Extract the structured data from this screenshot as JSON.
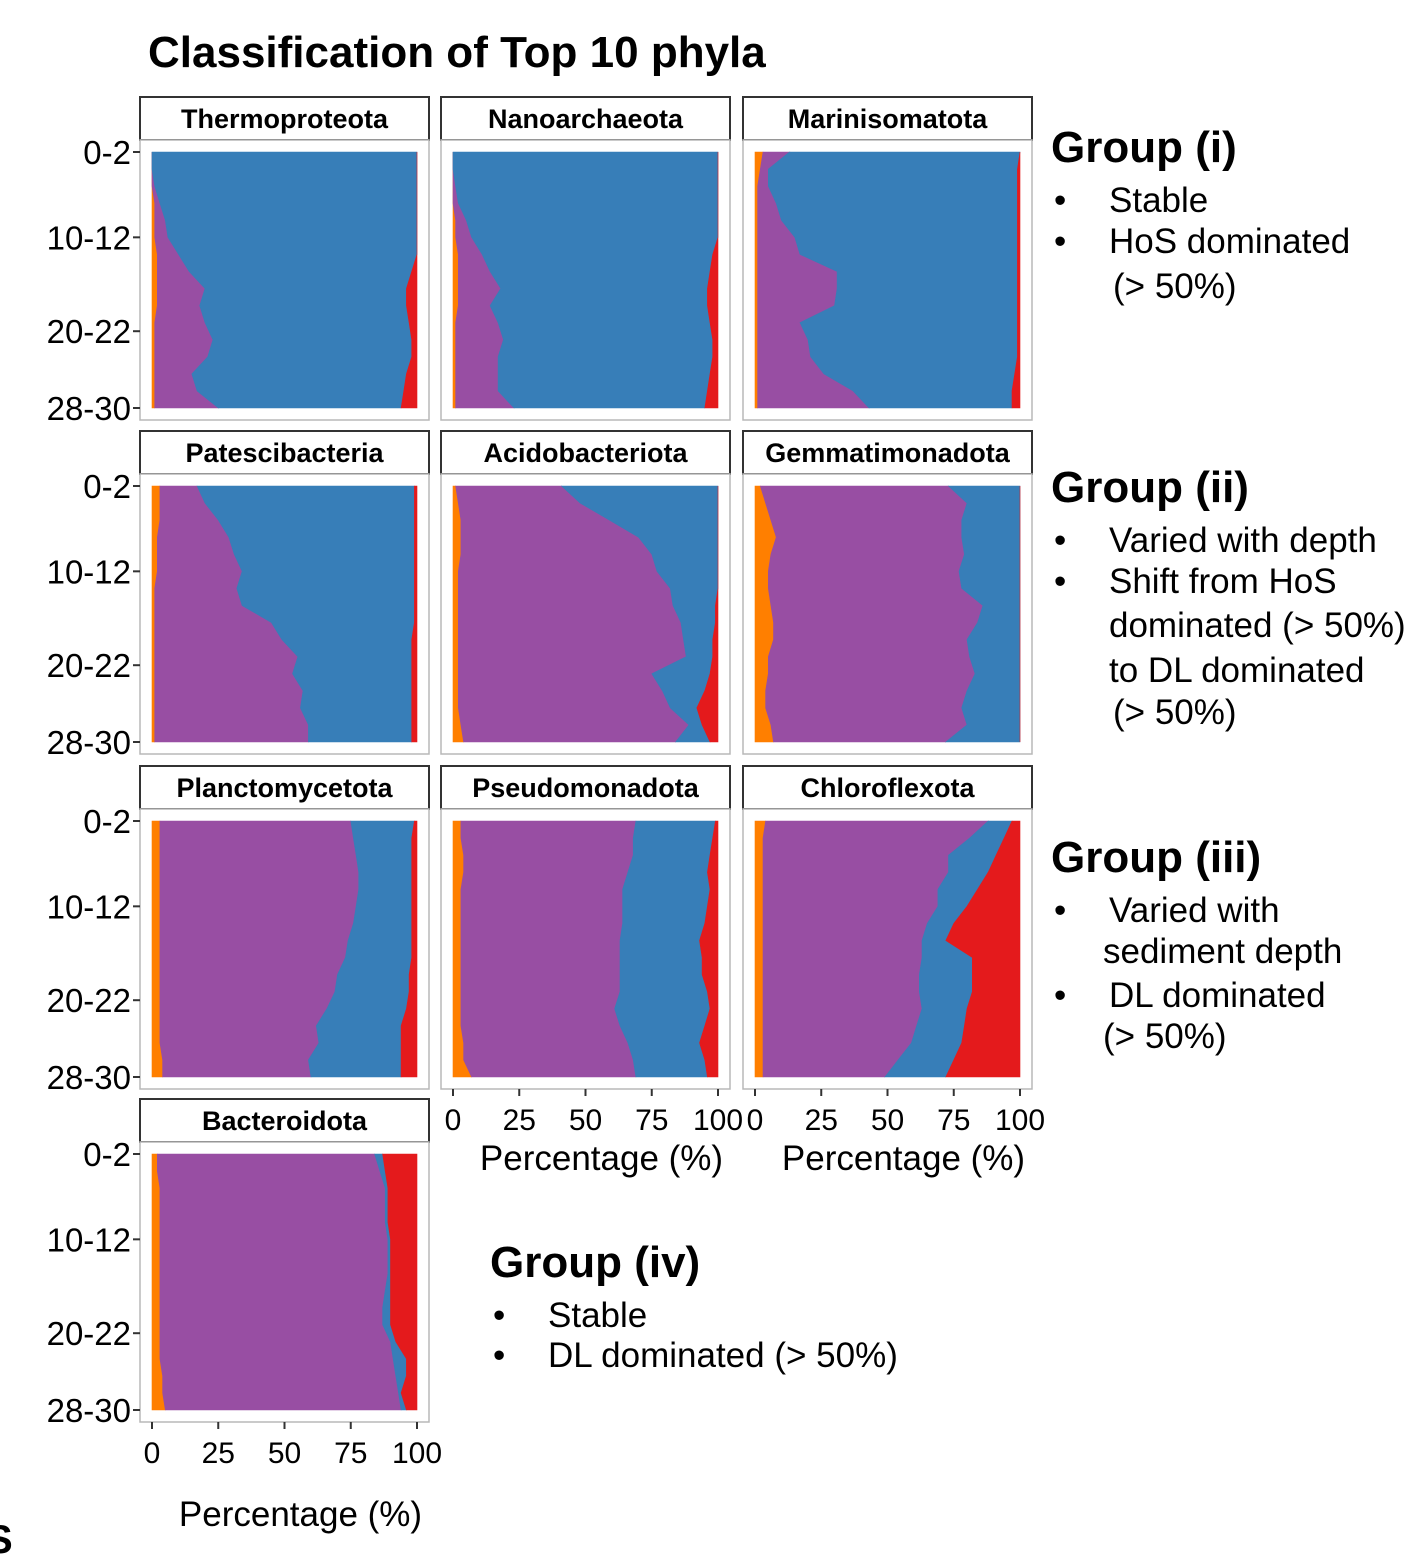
{
  "title": "Classification of Top 10 phyla",
  "colors": {
    "orange": "#FF7F00",
    "purple": "#984EA3",
    "blue": "#377EB8",
    "red": "#E41A1C",
    "strip_bg": "#FFFFFF",
    "frame": "#333333"
  },
  "groups": [
    {
      "title": "Group (i)",
      "lines": [
        {
          "bullet": "•",
          "text": "Stable"
        },
        {
          "bullet": "•",
          "text": "HoS dominated"
        },
        {
          "bullet": "",
          "text": "(> 50%)"
        }
      ]
    },
    {
      "title": "Group (ii)",
      "lines": [
        {
          "bullet": "•",
          "text": "Varied with depth"
        },
        {
          "bullet": "•",
          "text": "Shift from HoS"
        },
        {
          "bullet": "",
          "text": "dominated (> 50%)"
        },
        {
          "bullet": "",
          "text": "to DL dominated"
        },
        {
          "bullet": "",
          "text": "(> 50%)"
        }
      ]
    },
    {
      "title": "Group (iii)",
      "lines": [
        {
          "bullet": "•",
          "text": "Varied with"
        },
        {
          "bullet": "",
          "text": "sediment depth"
        },
        {
          "bullet": "•",
          "text": "DL dominated"
        },
        {
          "bullet": "",
          "text": "(> 50%)"
        }
      ]
    },
    {
      "title": "Group (iv)",
      "lines": [
        {
          "bullet": "•",
          "text": "Stable"
        },
        {
          "bullet": "•",
          "text": "DL dominated (> 50%)"
        }
      ]
    }
  ],
  "stray_mark": "S",
  "chart_data": {
    "type": "area",
    "title": "Classification of Top 10 phyla",
    "xlabel": "Percentage (%)",
    "ylabel": "",
    "xlim": [
      0,
      100
    ],
    "x_ticks": [
      0,
      25,
      50,
      75,
      100
    ],
    "y_tick_labels": [
      "0-2",
      "10-12",
      "20-22",
      "28-30"
    ],
    "y_tick_depths": [
      0,
      10,
      21,
      30
    ],
    "depths": [
      0,
      2,
      4,
      6,
      8,
      10,
      12,
      14,
      16,
      18,
      20,
      22,
      24,
      26,
      28,
      30
    ],
    "stack_order": [
      "orange",
      "purple",
      "blue",
      "red"
    ],
    "legend": "none",
    "panels": [
      {
        "name": "Thermoproteota",
        "orange": [
          0,
          0,
          0,
          1,
          1,
          1,
          2,
          2,
          2,
          2,
          1,
          1,
          1,
          1,
          1,
          1
        ],
        "purple": [
          0,
          0,
          1,
          2,
          4,
          5,
          8,
          12,
          18,
          16,
          19,
          22,
          20,
          14,
          16,
          24
        ],
        "red": [
          0,
          0,
          0,
          0,
          0,
          0,
          0,
          2,
          4,
          4,
          3,
          2,
          2,
          4,
          5,
          6
        ]
      },
      {
        "name": "Nanoarchaeota",
        "orange": [
          0,
          0,
          0,
          0,
          1,
          1,
          2,
          2,
          2,
          2,
          1,
          1,
          1,
          1,
          1,
          1
        ],
        "purple": [
          0,
          0,
          1,
          2,
          4,
          6,
          9,
          12,
          16,
          12,
          16,
          18,
          16,
          16,
          16,
          22
        ],
        "red": [
          0,
          0,
          0,
          0,
          0,
          0,
          2,
          3,
          4,
          4,
          3,
          2,
          2,
          3,
          4,
          5
        ]
      },
      {
        "name": "Marinisomatota",
        "orange": [
          3,
          2,
          1,
          1,
          1,
          1,
          1,
          1,
          1,
          1,
          1,
          1,
          1,
          1,
          1,
          1
        ],
        "purple": [
          10,
          3,
          4,
          7,
          9,
          14,
          16,
          30,
          30,
          29,
          16,
          19,
          20,
          25,
          36,
          42
        ],
        "red": [
          0,
          1,
          1,
          1,
          1,
          1,
          1,
          1,
          1,
          1,
          1,
          1,
          1,
          2,
          3,
          3
        ]
      },
      {
        "name": "Patescibacteria",
        "orange": [
          3,
          3,
          3,
          2,
          2,
          2,
          1,
          1,
          1,
          1,
          1,
          1,
          1,
          1,
          1,
          1
        ],
        "purple": [
          14,
          17,
          22,
          27,
          29,
          32,
          31,
          33,
          44,
          48,
          54,
          52,
          56,
          55,
          58,
          58
        ],
        "red": [
          1,
          1,
          1,
          1,
          1,
          1,
          1,
          1,
          1,
          2,
          2,
          2,
          2,
          2,
          2,
          2
        ]
      },
      {
        "name": "Acidobacteriota",
        "orange": [
          1,
          2,
          3,
          3,
          3,
          2,
          2,
          2,
          2,
          2,
          2,
          2,
          2,
          2,
          3,
          4
        ],
        "purple": [
          40,
          46,
          56,
          67,
          72,
          75,
          80,
          81,
          84,
          85,
          86,
          73,
          77,
          80,
          86,
          80
        ],
        "red": [
          0,
          0,
          0,
          0,
          0,
          0,
          0,
          1,
          1,
          2,
          2,
          3,
          5,
          8,
          6,
          3
        ]
      },
      {
        "name": "Gemmatimonadota",
        "orange": [
          2,
          4,
          6,
          8,
          6,
          5,
          5,
          6,
          7,
          7,
          5,
          5,
          4,
          4,
          6,
          7
        ],
        "purple": [
          71,
          76,
          72,
          70,
          73,
          72,
          73,
          80,
          77,
          73,
          76,
          78,
          76,
          74,
          74,
          65
        ],
        "red": [
          0,
          0,
          0,
          0,
          0,
          0,
          0,
          0,
          0,
          0,
          0,
          0,
          0,
          0,
          0,
          0
        ]
      },
      {
        "name": "Planctomycetota",
        "orange": [
          3,
          3,
          3,
          3,
          3,
          3,
          3,
          3,
          3,
          3,
          3,
          3,
          3,
          3,
          4,
          4
        ],
        "purple": [
          72,
          73,
          74,
          75,
          75,
          74,
          73,
          71,
          70,
          67,
          66,
          63,
          59,
          60,
          55,
          56
        ],
        "red": [
          1,
          2,
          2,
          2,
          2,
          2,
          2,
          2,
          2,
          3,
          3,
          4,
          6,
          6,
          6,
          6
        ]
      },
      {
        "name": "Pseudomonadota",
        "orange": [
          3,
          3,
          4,
          4,
          3,
          3,
          3,
          3,
          3,
          3,
          3,
          3,
          3,
          4,
          4,
          7
        ],
        "purple": [
          66,
          65,
          64,
          62,
          61,
          61,
          61,
          60,
          60,
          60,
          60,
          58,
          60,
          62,
          64,
          62
        ],
        "red": [
          1,
          2,
          3,
          4,
          3,
          4,
          5,
          7,
          6,
          6,
          4,
          3,
          5,
          7,
          5,
          4
        ]
      },
      {
        "name": "Chloroflexota",
        "orange": [
          4,
          3,
          3,
          3,
          3,
          3,
          3,
          3,
          3,
          3,
          3,
          3,
          3,
          3,
          3,
          3
        ],
        "purple": [
          84,
          78,
          70,
          70,
          66,
          66,
          62,
          60,
          60,
          59,
          59,
          60,
          58,
          56,
          51,
          46
        ],
        "red": [
          3,
          6,
          9,
          12,
          16,
          20,
          25,
          28,
          18,
          18,
          18,
          20,
          21,
          22,
          25,
          28
        ]
      },
      {
        "name": "Bacteroidota",
        "orange": [
          2,
          2,
          3,
          3,
          3,
          3,
          3,
          3,
          3,
          3,
          3,
          3,
          3,
          4,
          4,
          5
        ],
        "purple": [
          82,
          84,
          85,
          85,
          85,
          86,
          86,
          86,
          85,
          84,
          84,
          87,
          88,
          88,
          89,
          89
        ],
        "red": [
          13,
          12,
          11,
          11,
          11,
          10,
          10,
          10,
          10,
          10,
          10,
          8,
          4,
          4,
          6,
          4
        ]
      }
    ]
  }
}
